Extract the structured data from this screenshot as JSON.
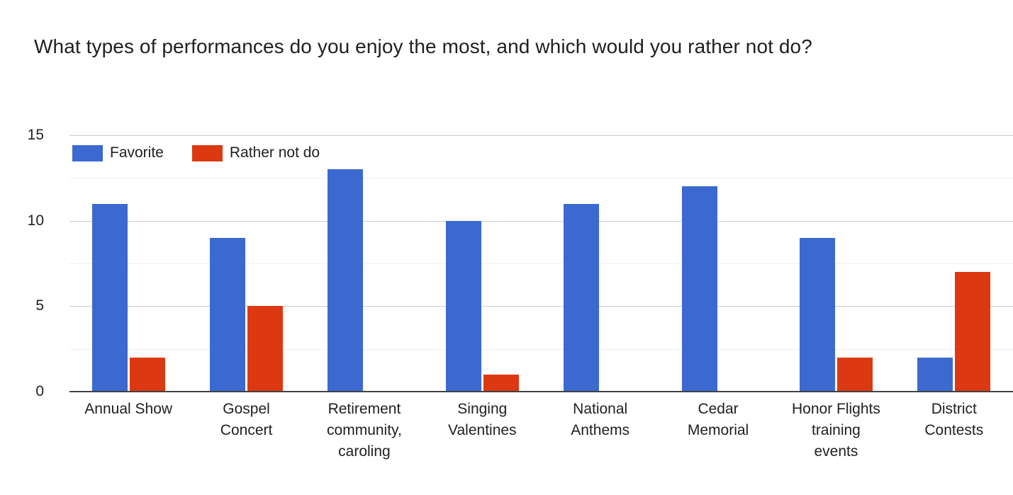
{
  "chart_data": {
    "type": "bar",
    "title": "What types of performances do you enjoy the most, and which would you rather not do?",
    "categories": [
      "Annual Show",
      "Gospel Concert",
      "Retirement community, caroling",
      "Singing Valentines",
      "National Anthems",
      "Cedar Memorial",
      "Honor Flights training events",
      "District Contests"
    ],
    "category_label_lines": [
      [
        "Annual Show"
      ],
      [
        "Gospel",
        "Concert"
      ],
      [
        "Retirement",
        "community,",
        "caroling"
      ],
      [
        "Singing",
        "Valentines"
      ],
      [
        "National",
        "Anthems"
      ],
      [
        "Cedar",
        "Memorial"
      ],
      [
        "Honor Flights",
        "training",
        "events"
      ],
      [
        "District",
        "Contests"
      ]
    ],
    "series": [
      {
        "name": "Favorite",
        "color": "#3B69D0",
        "values": [
          11,
          9,
          13,
          10,
          11,
          12,
          9,
          2
        ]
      },
      {
        "name": "Rather not do",
        "color": "#DC3912",
        "values": [
          2,
          5,
          0,
          1,
          0,
          0,
          2,
          7
        ]
      }
    ],
    "xlabel": "",
    "ylabel": "",
    "ylim": [
      0,
      15
    ],
    "y_ticks": [
      0,
      5,
      10,
      15
    ],
    "y_minor_ticks": [
      2.5,
      7.5,
      12.5
    ],
    "grid": true,
    "legend_position": "top-left",
    "style": {
      "grid_color": "#cccccc",
      "minor_grid_color": "#eeeeee",
      "axis_color": "#424242",
      "text_color": "#212121",
      "background": "#ffffff"
    }
  }
}
